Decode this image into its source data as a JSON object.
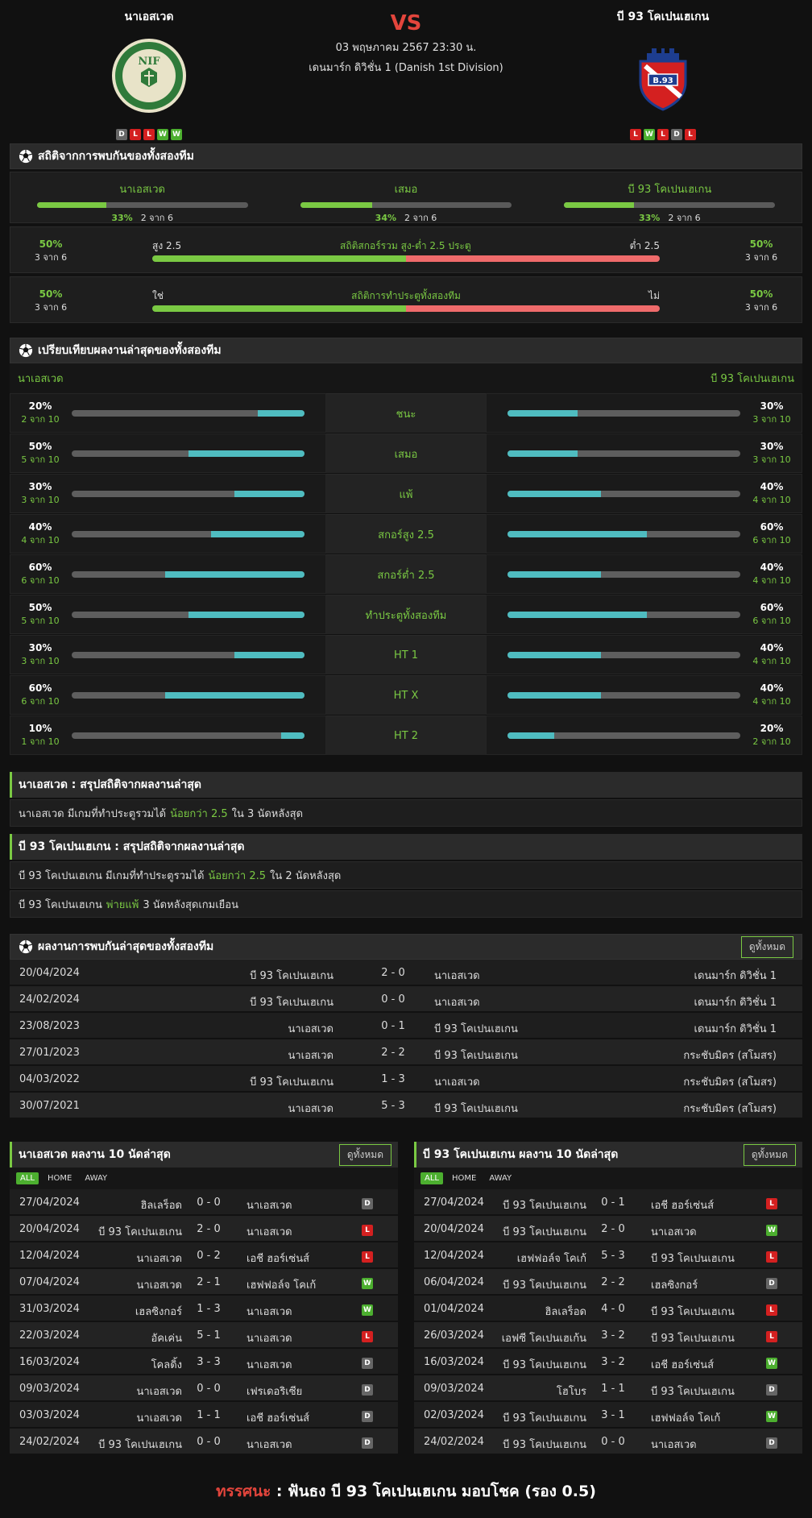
{
  "match": {
    "home_team": "นาเอสเวด",
    "away_team": "บี 93 โคเปนเฮเกน",
    "vs": "VS",
    "date": "03 พฤษภาคม 2567 23:30 น.",
    "league": "เดนมาร์ก ดิวิชั่น 1 (Danish 1st Division)",
    "home_form": [
      "D",
      "L",
      "L",
      "W",
      "W"
    ],
    "away_form": [
      "L",
      "W",
      "L",
      "D",
      "L"
    ]
  },
  "h2h_stats": {
    "title": "สถิติจากการพบกันของทั้งสองทีม",
    "cols": [
      {
        "label": "นาเอสเวด",
        "pct": "33%",
        "count": "2 จาก 6",
        "fill": 0.33
      },
      {
        "label": "เสมอ",
        "pct": "34%",
        "count": "2 จาก 6",
        "fill": 0.34
      },
      {
        "label": "บี 93 โคเปนเฮเกน",
        "pct": "33%",
        "count": "2 จาก 6",
        "fill": 0.33
      }
    ],
    "over_under": {
      "title": "สถิติสกอร์รวม สูง-ต่ำ 2.5 ประตู",
      "left_label": "สูง 2.5",
      "right_label": "ต่ำ 2.5",
      "left_pct": "50%",
      "left_count": "3 จาก 6",
      "right_pct": "50%",
      "right_count": "3 จาก 6",
      "fill": 0.5
    },
    "btts": {
      "title": "สถิติการทำประตูทั้งสองทีม",
      "left_label": "ใช่",
      "right_label": "ไม่",
      "left_pct": "50%",
      "left_count": "3 จาก 6",
      "right_pct": "50%",
      "right_count": "3 จาก 6",
      "fill": 0.5
    }
  },
  "compare": {
    "title": "เปรียบเทียบผลงานล่าสุดของทั้งสองทีม",
    "home_name": "นาเอสเวด",
    "away_name": "บี 93 โคเปนเฮเกน",
    "rows": [
      {
        "label": "ชนะ",
        "home_pct": "20%",
        "home_count": "2 จาก 10",
        "home_fill": 0.2,
        "away_pct": "30%",
        "away_count": "3 จาก 10",
        "away_fill": 0.3
      },
      {
        "label": "เสมอ",
        "home_pct": "50%",
        "home_count": "5 จาก 10",
        "home_fill": 0.5,
        "away_pct": "30%",
        "away_count": "3 จาก 10",
        "away_fill": 0.3
      },
      {
        "label": "แพ้",
        "home_pct": "30%",
        "home_count": "3 จาก 10",
        "home_fill": 0.3,
        "away_pct": "40%",
        "away_count": "4 จาก 10",
        "away_fill": 0.4
      },
      {
        "label": "สกอร์สูง 2.5",
        "home_pct": "40%",
        "home_count": "4 จาก 10",
        "home_fill": 0.4,
        "away_pct": "60%",
        "away_count": "6 จาก 10",
        "away_fill": 0.6
      },
      {
        "label": "สกอร์ต่ำ 2.5",
        "home_pct": "60%",
        "home_count": "6 จาก 10",
        "home_fill": 0.6,
        "away_pct": "40%",
        "away_count": "4 จาก 10",
        "away_fill": 0.4
      },
      {
        "label": "ทำประตูทั้งสองทีม",
        "home_pct": "50%",
        "home_count": "5 จาก 10",
        "home_fill": 0.5,
        "away_pct": "60%",
        "away_count": "6 จาก 10",
        "away_fill": 0.6
      },
      {
        "label": "HT 1",
        "home_pct": "30%",
        "home_count": "3 จาก 10",
        "home_fill": 0.3,
        "away_pct": "40%",
        "away_count": "4 จาก 10",
        "away_fill": 0.4
      },
      {
        "label": "HT X",
        "home_pct": "60%",
        "home_count": "6 จาก 10",
        "home_fill": 0.6,
        "away_pct": "40%",
        "away_count": "4 จาก 10",
        "away_fill": 0.4
      },
      {
        "label": "HT 2",
        "home_pct": "10%",
        "home_count": "1 จาก 10",
        "home_fill": 0.1,
        "away_pct": "20%",
        "away_count": "2 จาก 10",
        "away_fill": 0.2
      }
    ]
  },
  "summary_home": {
    "title": "นาเอสเวด : สรุปสถิติจากผลงานล่าสุด",
    "r1_a": "นาเอสเวด  มีเกมที่ทำประตูรวมได้",
    "r1_b": "น้อยกว่า  2.5",
    "r1_c": "ใน 3 นัดหลังสุด"
  },
  "summary_away": {
    "title": "บี 93 โคเปนเฮเกน : สรุปสถิติจากผลงานล่าสุด",
    "r1_a": "บี 93 โคเปนเฮเกน  มีเกมที่ทำประตูรวมได้",
    "r1_b": "น้อยกว่า  2.5",
    "r1_c": "ใน 2 นัดหลังสุด",
    "r2_a": "บี 93 โคเปนเฮเกน",
    "r2_b": "พ่ายแพ้",
    "r2_c": "3  นัดหลังสุดเกมเยือน"
  },
  "h2h_matches": {
    "title": "ผลงานการพบกันล่าสุดของทั้งสองทีม",
    "view_all": "ดูทั้งหมด",
    "rows": [
      {
        "date": "20/04/2024",
        "home": "บี 93 โคเปนเฮเกน",
        "score": "2 - 0",
        "away": "นาเอสเวด",
        "league": "เดนมาร์ก ดิวิชั่น 1"
      },
      {
        "date": "24/02/2024",
        "home": "บี 93 โคเปนเฮเกน",
        "score": "0 - 0",
        "away": "นาเอสเวด",
        "league": "เดนมาร์ก ดิวิชั่น 1"
      },
      {
        "date": "23/08/2023",
        "home": "นาเอสเวด",
        "score": "0 - 1",
        "away": "บี 93 โคเปนเฮเกน",
        "league": "เดนมาร์ก ดิวิชั่น 1"
      },
      {
        "date": "27/01/2023",
        "home": "นาเอสเวด",
        "score": "2 - 2",
        "away": "บี 93 โคเปนเฮเกน",
        "league": "กระชับมิตร (สโมสร)"
      },
      {
        "date": "04/03/2022",
        "home": "บี 93 โคเปนเฮเกน",
        "score": "1 - 3",
        "away": "นาเอสเวด",
        "league": "กระชับมิตร (สโมสร)"
      },
      {
        "date": "30/07/2021",
        "home": "นาเอสเวด",
        "score": "5 - 3",
        "away": "บี 93 โคเปนเฮเกน",
        "league": "กระชับมิตร (สโมสร)"
      }
    ]
  },
  "last10_home": {
    "title": "นาเอสเวด ผลงาน 10 นัดล่าสุด",
    "view_all": "ดูทั้งหมด",
    "tabs": [
      "ALL",
      "HOME",
      "AWAY"
    ],
    "rows": [
      {
        "date": "27/04/2024",
        "home": "ฮิลเลร็อด",
        "score": "0 - 0",
        "away": "นาเอสเวด",
        "res": "D"
      },
      {
        "date": "20/04/2024",
        "home": "บี 93 โคเปนเฮเกน",
        "score": "2 - 0",
        "away": "นาเอสเวด",
        "res": "L"
      },
      {
        "date": "12/04/2024",
        "home": "นาเอสเวด",
        "score": "0 - 2",
        "away": "เอชี ฮอร์เซ่นส์",
        "res": "L"
      },
      {
        "date": "07/04/2024",
        "home": "นาเอสเวด",
        "score": "2 - 1",
        "away": "เฮฟฟอล์จ โคเก้",
        "res": "W"
      },
      {
        "date": "31/03/2024",
        "home": "เฮลซิงกอร์",
        "score": "1 - 3",
        "away": "นาเอสเวด",
        "res": "W"
      },
      {
        "date": "22/03/2024",
        "home": "อัคเค่น",
        "score": "5 - 1",
        "away": "นาเอสเวด",
        "res": "L"
      },
      {
        "date": "16/03/2024",
        "home": "โคลดิ้ง",
        "score": "3 - 3",
        "away": "นาเอสเวด",
        "res": "D"
      },
      {
        "date": "09/03/2024",
        "home": "นาเอสเวด",
        "score": "0 - 0",
        "away": "เฟรเดอริเซีย",
        "res": "D"
      },
      {
        "date": "03/03/2024",
        "home": "นาเอสเวด",
        "score": "1 - 1",
        "away": "เอชี ฮอร์เซ่นส์",
        "res": "D"
      },
      {
        "date": "24/02/2024",
        "home": "บี 93 โคเปนเฮเกน",
        "score": "0 - 0",
        "away": "นาเอสเวด",
        "res": "D"
      }
    ]
  },
  "last10_away": {
    "title": "บี 93 โคเปนเฮเกน ผลงาน 10 นัดล่าสุด",
    "view_all": "ดูทั้งหมด",
    "tabs": [
      "ALL",
      "HOME",
      "AWAY"
    ],
    "rows": [
      {
        "date": "27/04/2024",
        "home": "บี 93 โคเปนเฮเกน",
        "score": "0 - 1",
        "away": "เอชี ฮอร์เซ่นส์",
        "res": "L"
      },
      {
        "date": "20/04/2024",
        "home": "บี 93 โคเปนเฮเกน",
        "score": "2 - 0",
        "away": "นาเอสเวด",
        "res": "W"
      },
      {
        "date": "12/04/2024",
        "home": "เฮฟฟอล์จ โคเก้",
        "score": "5 - 3",
        "away": "บี 93 โคเปนเฮเกน",
        "res": "L"
      },
      {
        "date": "06/04/2024",
        "home": "บี 93 โคเปนเฮเกน",
        "score": "2 - 2",
        "away": "เฮลซิงกอร์",
        "res": "D"
      },
      {
        "date": "01/04/2024",
        "home": "ฮิลเลร็อด",
        "score": "4 - 0",
        "away": "บี 93 โคเปนเฮเกน",
        "res": "L"
      },
      {
        "date": "26/03/2024",
        "home": "เอฟซี โคเปนเฮเก้น",
        "score": "3 - 2",
        "away": "บี 93 โคเปนเฮเกน",
        "res": "L"
      },
      {
        "date": "16/03/2024",
        "home": "บี 93 โคเปนเฮเกน",
        "score": "3 - 2",
        "away": "เอชี ฮอร์เซ่นส์",
        "res": "W"
      },
      {
        "date": "09/03/2024",
        "home": "โฮโบร",
        "score": "1 - 1",
        "away": "บี 93 โคเปนเฮเกน",
        "res": "D"
      },
      {
        "date": "02/03/2024",
        "home": "บี 93 โคเปนเฮเกน",
        "score": "3 - 1",
        "away": "เฮฟฟอล์จ โคเก้",
        "res": "W"
      },
      {
        "date": "24/02/2024",
        "home": "บี 93 โคเปนเฮเกน",
        "score": "0 - 0",
        "away": "นาเอสเวด",
        "res": "D"
      }
    ]
  },
  "prediction": {
    "label": "ทรรศนะ",
    "sep": " : ",
    "text": "ฟันธง บี 93 โคเปนเฮเกน มอบโชค (รอง 0.5)"
  }
}
